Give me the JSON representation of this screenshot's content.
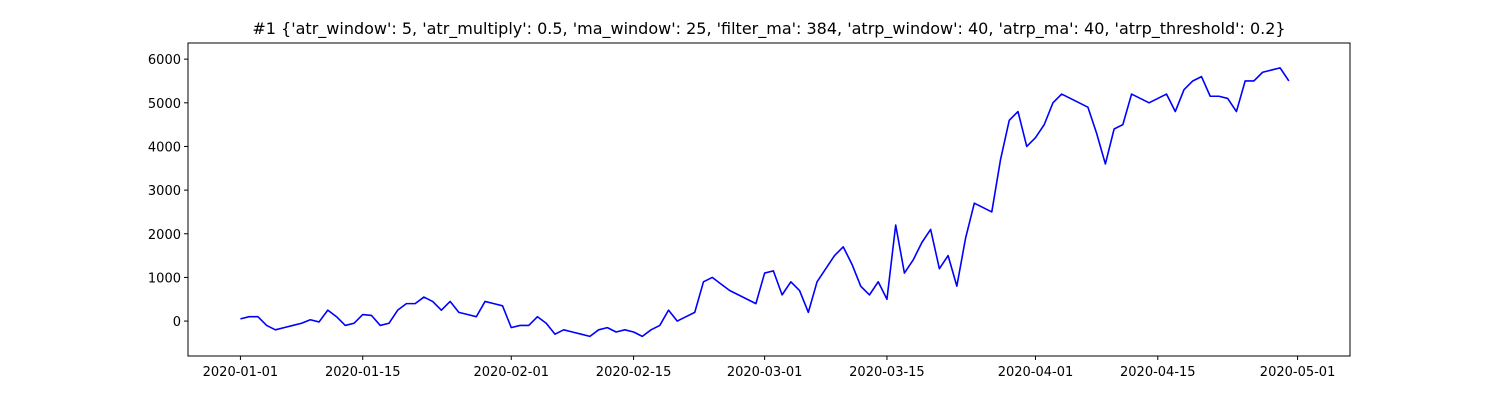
{
  "chart_data": {
    "type": "line",
    "title": "#1 {'atr_window': 5, 'atr_multiply': 0.5, 'ma_window': 25, 'filter_ma': 384, 'atrp_window': 40, 'atrp_ma': 40, 'atrp_threshold': 0.2}",
    "x": [
      "2020-01-01",
      "2020-01-02",
      "2020-01-03",
      "2020-01-04",
      "2020-01-05",
      "2020-01-06",
      "2020-01-07",
      "2020-01-08",
      "2020-01-09",
      "2020-01-10",
      "2020-01-11",
      "2020-01-12",
      "2020-01-13",
      "2020-01-14",
      "2020-01-15",
      "2020-01-16",
      "2020-01-17",
      "2020-01-18",
      "2020-01-19",
      "2020-01-20",
      "2020-01-21",
      "2020-01-22",
      "2020-01-23",
      "2020-01-24",
      "2020-01-25",
      "2020-01-26",
      "2020-01-27",
      "2020-01-28",
      "2020-01-29",
      "2020-01-30",
      "2020-01-31",
      "2020-02-01",
      "2020-02-02",
      "2020-02-03",
      "2020-02-04",
      "2020-02-05",
      "2020-02-06",
      "2020-02-07",
      "2020-02-08",
      "2020-02-09",
      "2020-02-10",
      "2020-02-11",
      "2020-02-12",
      "2020-02-13",
      "2020-02-14",
      "2020-02-15",
      "2020-02-16",
      "2020-02-17",
      "2020-02-18",
      "2020-02-19",
      "2020-02-20",
      "2020-02-21",
      "2020-02-22",
      "2020-02-23",
      "2020-02-24",
      "2020-02-25",
      "2020-02-26",
      "2020-02-27",
      "2020-02-28",
      "2020-02-29",
      "2020-03-01",
      "2020-03-02",
      "2020-03-03",
      "2020-03-04",
      "2020-03-05",
      "2020-03-06",
      "2020-03-07",
      "2020-03-08",
      "2020-03-09",
      "2020-03-10",
      "2020-03-11",
      "2020-03-12",
      "2020-03-13",
      "2020-03-14",
      "2020-03-15",
      "2020-03-16",
      "2020-03-17",
      "2020-03-18",
      "2020-03-19",
      "2020-03-20",
      "2020-03-21",
      "2020-03-22",
      "2020-03-23",
      "2020-03-24",
      "2020-03-25",
      "2020-03-26",
      "2020-03-27",
      "2020-03-28",
      "2020-03-29",
      "2020-03-30",
      "2020-03-31",
      "2020-04-01",
      "2020-04-02",
      "2020-04-03",
      "2020-04-04",
      "2020-04-05",
      "2020-04-06",
      "2020-04-07",
      "2020-04-08",
      "2020-04-09",
      "2020-04-10",
      "2020-04-11",
      "2020-04-12",
      "2020-04-13",
      "2020-04-14",
      "2020-04-15",
      "2020-04-16",
      "2020-04-17",
      "2020-04-18",
      "2020-04-19",
      "2020-04-20",
      "2020-04-21",
      "2020-04-22",
      "2020-04-23",
      "2020-04-24",
      "2020-04-25",
      "2020-04-26",
      "2020-04-27",
      "2020-04-28",
      "2020-04-29",
      "2020-04-30"
    ],
    "series": [
      {
        "color": "#0000ff",
        "values": [
          50,
          100,
          100,
          -100,
          -200,
          -150,
          -100,
          -50,
          30,
          -20,
          250,
          100,
          -100,
          -50,
          150,
          130,
          -100,
          -50,
          250,
          400,
          400,
          550,
          450,
          250,
          450,
          200,
          150,
          100,
          450,
          400,
          350,
          -150,
          -100,
          -100,
          100,
          -50,
          -300,
          -200,
          -250,
          -300,
          -350,
          -200,
          -150,
          -250,
          -200,
          -250,
          -350,
          -200,
          -100,
          250,
          0,
          100,
          200,
          900,
          1000,
          850,
          700,
          600,
          500,
          400,
          1100,
          1150,
          600,
          900,
          700,
          200,
          900,
          1200,
          1500,
          1700,
          1300,
          800,
          600,
          900,
          500,
          2200,
          1100,
          1400,
          1800,
          2100,
          1200,
          1500,
          800,
          1900,
          2700,
          2600,
          2500,
          3700,
          4600,
          4800,
          4000,
          4200,
          4500,
          5000,
          5200,
          5100,
          5000,
          4900,
          4300,
          3600,
          4400,
          4500,
          5200,
          5100,
          5000,
          5100,
          5200,
          4800,
          5300,
          5500,
          5600,
          5150,
          5150,
          5100,
          4800,
          5500,
          5500,
          5700,
          5750,
          5800,
          5500
        ]
      }
    ],
    "xlim": [
      "2019-12-26",
      "2020-05-07"
    ],
    "xticks": [
      "2020-01-01",
      "2020-01-15",
      "2020-02-01",
      "2020-02-15",
      "2020-03-01",
      "2020-03-15",
      "2020-04-01",
      "2020-04-15",
      "2020-05-01"
    ],
    "ylim": [
      -800,
      6370
    ],
    "yticks": [
      0,
      1000,
      2000,
      3000,
      4000,
      5000,
      6000
    ]
  }
}
